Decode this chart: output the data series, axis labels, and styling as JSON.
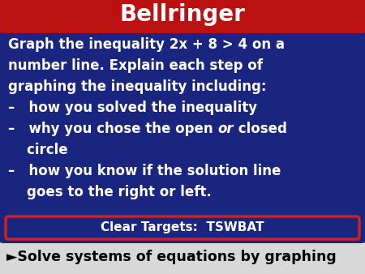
{
  "title": "Bellringer",
  "title_bg": "#bb1111",
  "title_color": "#ffffff",
  "main_bg": "#1a2580",
  "fig_bg": "#4a9090",
  "main_text_line1": "Graph the inequality 2x + 8 > 4 on a",
  "main_text_line2": "number line. Explain each step of",
  "main_text_line3": "graphing the inequality including:",
  "bullet1": "–   how you solved the inequality",
  "bullet2a_pre": "–   why you chose the open ",
  "bullet2a_or": "or",
  "bullet2a_post": " closed",
  "bullet2b": "    circle",
  "bullet3a": "–   how you know if the solution line",
  "bullet3b": "    goes to the right or left.",
  "targets_bg": "#1a2580",
  "targets_border": "#cc2222",
  "targets_text": "Clear Targets:  TSWBAT",
  "targets_text_color": "#ffffff",
  "bottom_bg": "#d8d8d8",
  "bottom_text": "►Solve systems of equations by graphing",
  "bottom_text_color": "#000000",
  "main_text_color": "#ffffff",
  "figsize": [
    4.5,
    3.38
  ],
  "dpi": 100
}
